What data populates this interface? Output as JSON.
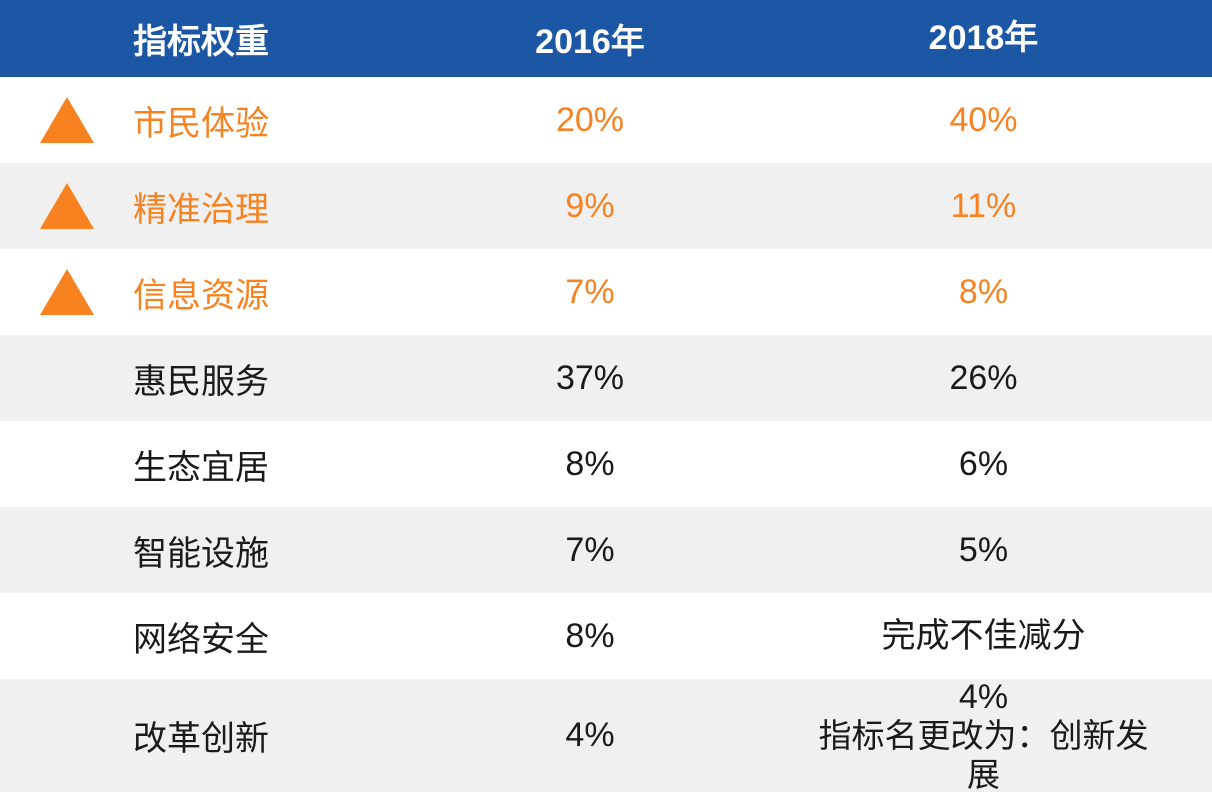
{
  "colors": {
    "header_bg": "#1B57A5",
    "header_text": "#FFFFFF",
    "accent_orange": "#F8821F",
    "row_alt_bg": "#F0F0F0",
    "row_bg": "#FFFFFF",
    "text_dark": "#1A1A1A"
  },
  "table": {
    "columns": [
      {
        "key": "indicator",
        "label": "指标权重"
      },
      {
        "key": "y2016",
        "label": "2016年"
      },
      {
        "key": "y2018",
        "label": "2018年"
      }
    ],
    "rows": [
      {
        "label": "市民体验",
        "y2016": "20%",
        "y2018": "40%",
        "highlight": true
      },
      {
        "label": "精准治理",
        "y2016": "9%",
        "y2018": "11%",
        "highlight": true
      },
      {
        "label": "信息资源",
        "y2016": "7%",
        "y2018": "8%",
        "highlight": true
      },
      {
        "label": "惠民服务",
        "y2016": "37%",
        "y2018": "26%",
        "highlight": false
      },
      {
        "label": "生态宜居",
        "y2016": "8%",
        "y2018": "6%",
        "highlight": false
      },
      {
        "label": "智能设施",
        "y2016": "7%",
        "y2018": "5%",
        "highlight": false
      },
      {
        "label": "网络安全",
        "y2016": "8%",
        "y2018": "完成不佳减分",
        "highlight": false
      },
      {
        "label": "改革创新",
        "y2016": "4%",
        "y2018": "4%",
        "y2018_note": "指标名更改为：创新发展",
        "highlight": false
      }
    ]
  },
  "chart_data": {
    "type": "table",
    "title": "指标权重",
    "columns": [
      "指标权重",
      "2016年",
      "2018年"
    ],
    "rows": [
      [
        "市民体验",
        "20%",
        "40%"
      ],
      [
        "精准治理",
        "9%",
        "11%"
      ],
      [
        "信息资源",
        "7%",
        "8%"
      ],
      [
        "惠民服务",
        "37%",
        "26%"
      ],
      [
        "生态宜居",
        "8%",
        "6%"
      ],
      [
        "智能设施",
        "7%",
        "5%"
      ],
      [
        "网络安全",
        "8%",
        "完成不佳减分"
      ],
      [
        "改革创新",
        "4%",
        "4% 指标名更改为：创新发展"
      ]
    ],
    "highlighted_rows_orange_with_up_triangle": [
      0,
      1,
      2
    ],
    "layout": {
      "striped": true,
      "stripe_color": "#F0F0F0",
      "header_color": "#1B57A5"
    }
  }
}
